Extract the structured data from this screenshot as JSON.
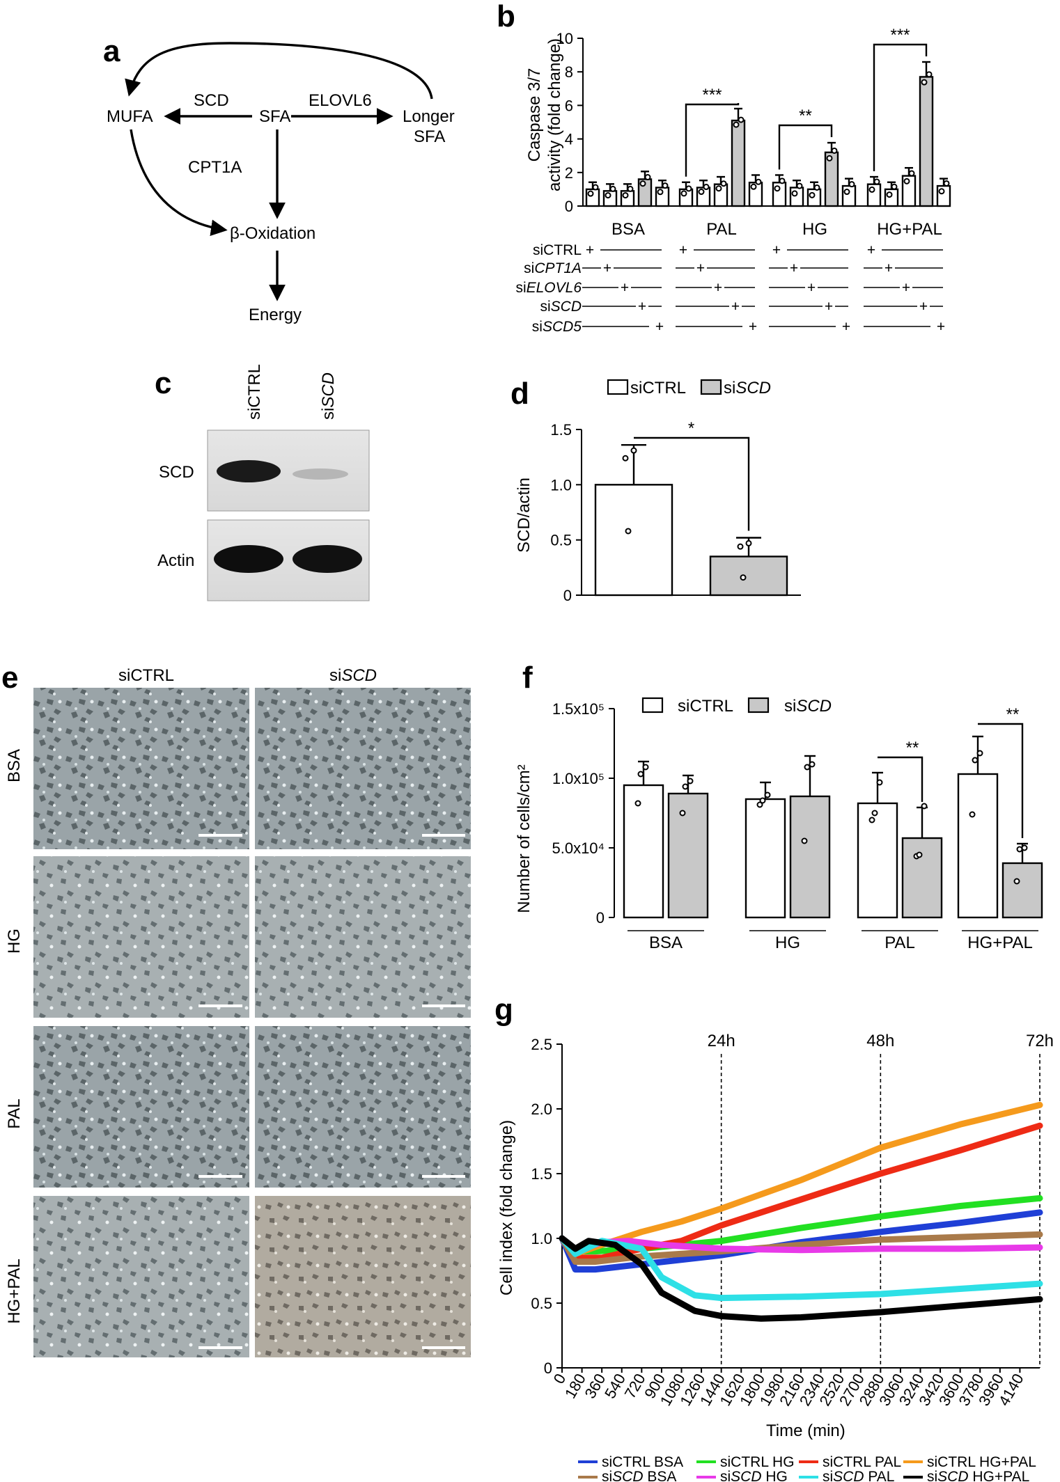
{
  "panel_letters": {
    "a": "a",
    "b": "b",
    "c": "c",
    "d": "d",
    "e": "e",
    "f": "f",
    "g": "g"
  },
  "pathway": {
    "nodes": {
      "mufa": "MUFA",
      "sfa": "SFA",
      "longer": "Longer",
      "longer2": "SFA",
      "beta": "β-Oxidation",
      "energy": "Energy"
    },
    "enzymes": {
      "scd": "SCD",
      "elovl6": "ELOVL6",
      "cpt1a": "CPT1A"
    }
  },
  "sirna_rows": [
    {
      "prefix": "si",
      "name": "CTRL",
      "italic": false
    },
    {
      "prefix": "si",
      "name": "CPT1A",
      "italic": true
    },
    {
      "prefix": "si",
      "name": "ELOVL6",
      "italic": true
    },
    {
      "prefix": "si",
      "name": "SCD",
      "italic": true
    },
    {
      "prefix": "si",
      "name": "SCD5",
      "italic": true
    }
  ],
  "sirna_marks": [
    "+",
    "+",
    "+",
    "+",
    "+",
    "–"
  ],
  "legend_dg": {
    "ctrl": "siCTRL",
    "scd_prefix": "si",
    "scd_name": "SCD"
  },
  "western": {
    "lanes": [
      "siCTRL",
      "siSCD"
    ],
    "lane2_prefix": "si",
    "lane2_name": "SCD",
    "bands": [
      "SCD",
      "Actin"
    ]
  },
  "micrographs": {
    "columns": {
      "c1": "siCTRL",
      "c2_prefix": "si",
      "c2_name": "SCD"
    },
    "rows": [
      "BSA",
      "HG",
      "PAL",
      "HG+PAL"
    ]
  },
  "legend_g": [
    "siCTRL BSA",
    "siCTRL HG",
    "siCTRL PAL",
    "siCTRL HG+PAL"
  ],
  "legend_g2": [
    {
      "prefix": "si",
      "name": "SCD",
      "suffix": " BSA"
    },
    {
      "prefix": "si",
      "name": "SCD",
      "suffix": " HG"
    },
    {
      "prefix": "si",
      "name": "SCD",
      "suffix": " PAL"
    },
    {
      "prefix": "si",
      "name": "SCD",
      "suffix": " HG+PAL"
    }
  ],
  "colors": {
    "siCTRL BSA": "#1f3fd6",
    "siSCD BSA": "#a97a4a",
    "siCTRL HG": "#22e022",
    "siSCD HG": "#e83ae8",
    "siCTRL PAL": "#ee2b15",
    "siSCD PAL": "#2ee0e6",
    "siCTRL HG+PAL": "#f59a1c",
    "siSCD HG+PAL": "#000000"
  },
  "chart_data": [
    {
      "panel": "b",
      "type": "bar",
      "ylabel": "Caspase 3/7 activity (fold change)",
      "ylim": [
        0,
        10
      ],
      "yticks": [
        "0",
        "2",
        "4",
        "6",
        "8",
        "10"
      ],
      "groups": [
        "BSA",
        "PAL",
        "HG",
        "HG+PAL"
      ],
      "categories": [
        "siCTRL",
        "siCPT1A",
        "siELOVL6",
        "siSCD",
        "siSCD5"
      ],
      "values": [
        [
          1.0,
          0.9,
          0.9,
          1.6,
          1.1
        ],
        [
          1.0,
          1.1,
          1.3,
          5.1,
          1.4
        ],
        [
          1.4,
          1.1,
          1.0,
          3.2,
          1.2
        ],
        [
          1.3,
          1.0,
          1.8,
          7.7,
          1.2
        ]
      ],
      "significance": [
        {
          "group": "PAL",
          "label": "***"
        },
        {
          "group": "HG",
          "label": "**"
        },
        {
          "group": "HG+PAL",
          "label": "***"
        }
      ]
    },
    {
      "panel": "d",
      "type": "bar",
      "ylabel": "SCD/actin",
      "ylim": [
        0,
        1.5
      ],
      "yticks": [
        "0",
        "0.5",
        "1.0",
        "1.5"
      ],
      "categories": [
        "siCTRL",
        "siSCD"
      ],
      "values": [
        1.0,
        0.35
      ],
      "significance": "*"
    },
    {
      "panel": "f",
      "type": "bar",
      "ylabel": "Number of cells/cm²",
      "ylim": [
        0,
        150000
      ],
      "yticks": [
        "0",
        "5.0x10⁴",
        "1.0x10⁵",
        "1.5x10⁵"
      ],
      "groups": [
        "BSA",
        "HG",
        "PAL",
        "HG+PAL"
      ],
      "series": [
        {
          "name": "siCTRL",
          "values": [
            95000,
            85000,
            82000,
            103000
          ]
        },
        {
          "name": "siSCD",
          "values": [
            89000,
            87000,
            57000,
            39000
          ]
        }
      ],
      "significance": [
        {
          "group": "PAL",
          "label": "**"
        },
        {
          "group": "HG+PAL",
          "label": "**"
        }
      ]
    },
    {
      "panel": "g",
      "type": "line",
      "xlabel": "Time (min)",
      "ylabel": "Cell index (fold change)",
      "xlim": [
        0,
        4320
      ],
      "ylim": [
        0,
        2.5
      ],
      "xticks": [
        0,
        180,
        360,
        540,
        720,
        900,
        1080,
        1260,
        1440,
        1620,
        1800,
        1980,
        2160,
        2340,
        2520,
        2700,
        2880,
        3060,
        3240,
        3420,
        3600,
        3780,
        3960,
        4140
      ],
      "yticks": [
        "0",
        "0.5",
        "1.0",
        "1.5",
        "2.0",
        "2.5"
      ],
      "vlines": [
        {
          "x": 1440,
          "label": "24h"
        },
        {
          "x": 2880,
          "label": "48h"
        },
        {
          "x": 4320,
          "label": "72h"
        }
      ],
      "series": [
        {
          "name": "siCTRL BSA",
          "x": [
            0,
            120,
            300,
            720,
            1440,
            2160,
            2880,
            3600,
            4320
          ],
          "y": [
            1.0,
            0.76,
            0.76,
            0.8,
            0.87,
            0.97,
            1.05,
            1.12,
            1.2
          ]
        },
        {
          "name": "siCTRL HG",
          "x": [
            0,
            120,
            300,
            720,
            1440,
            2160,
            2880,
            3600,
            4320
          ],
          "y": [
            1.0,
            0.9,
            0.9,
            0.92,
            0.98,
            1.08,
            1.17,
            1.25,
            1.31
          ]
        },
        {
          "name": "siCTRL PAL",
          "x": [
            0,
            120,
            360,
            720,
            1080,
            1440,
            2160,
            2880,
            3600,
            4320
          ],
          "y": [
            1.0,
            0.85,
            0.85,
            0.92,
            0.98,
            1.1,
            1.3,
            1.5,
            1.68,
            1.87
          ]
        },
        {
          "name": "siCTRL HG+PAL",
          "x": [
            0,
            120,
            360,
            720,
            1080,
            1440,
            2160,
            2880,
            3600,
            4320
          ],
          "y": [
            1.0,
            0.88,
            0.95,
            1.05,
            1.13,
            1.23,
            1.45,
            1.7,
            1.88,
            2.03
          ]
        },
        {
          "name": "siSCD BSA",
          "x": [
            0,
            120,
            300,
            720,
            1440,
            2160,
            2880,
            3600,
            4320
          ],
          "y": [
            1.0,
            0.82,
            0.82,
            0.86,
            0.9,
            0.95,
            0.99,
            1.01,
            1.03
          ]
        },
        {
          "name": "siSCD HG",
          "x": [
            0,
            120,
            360,
            600,
            900,
            1440,
            2160,
            2880,
            3600,
            4320
          ],
          "y": [
            1.0,
            0.9,
            0.97,
            0.98,
            0.95,
            0.92,
            0.91,
            0.92,
            0.92,
            0.93
          ]
        },
        {
          "name": "siSCD PAL",
          "x": [
            0,
            120,
            360,
            720,
            900,
            1200,
            1440,
            2160,
            2880,
            3600,
            4320
          ],
          "y": [
            1.0,
            0.88,
            0.98,
            0.92,
            0.7,
            0.56,
            0.54,
            0.55,
            0.57,
            0.61,
            0.65
          ]
        },
        {
          "name": "siSCD HG+PAL",
          "x": [
            0,
            120,
            240,
            480,
            720,
            900,
            1200,
            1440,
            1800,
            2160,
            2880,
            3600,
            4320
          ],
          "y": [
            1.0,
            0.92,
            0.98,
            0.95,
            0.8,
            0.58,
            0.44,
            0.4,
            0.38,
            0.39,
            0.43,
            0.48,
            0.53
          ]
        }
      ]
    }
  ]
}
